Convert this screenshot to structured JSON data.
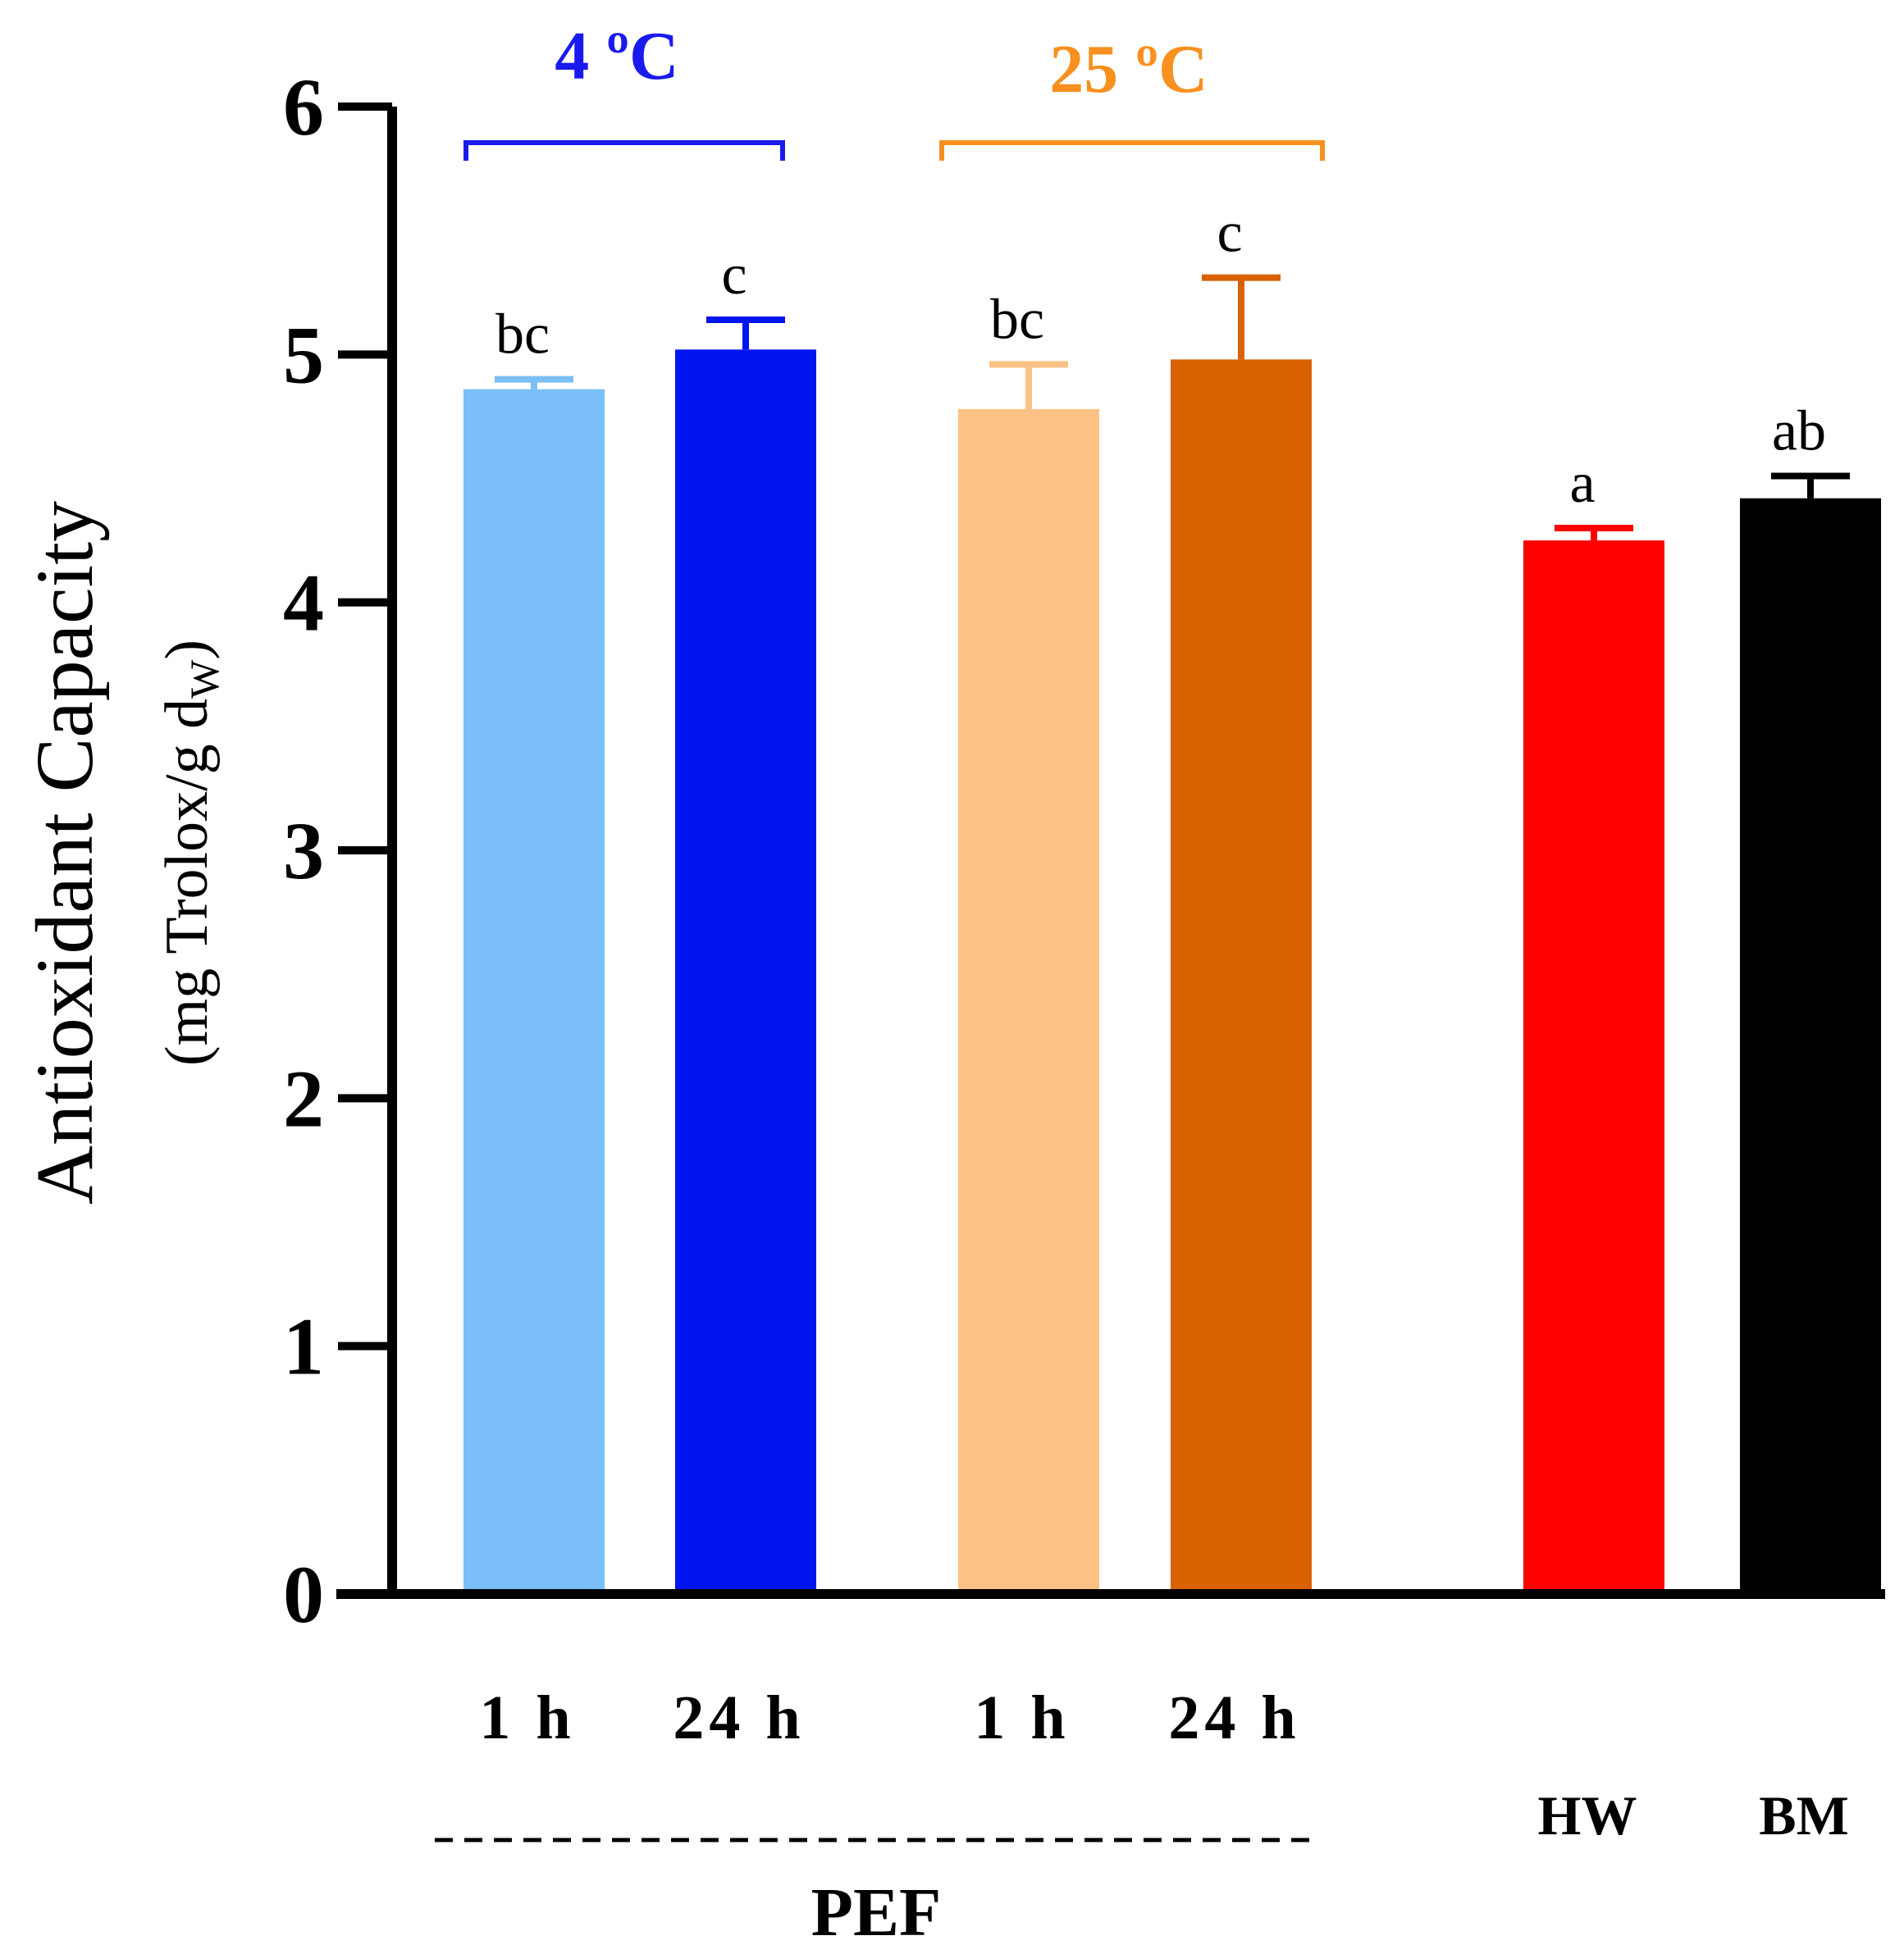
{
  "chart_data": {
    "type": "bar",
    "title": "",
    "xlabel": "",
    "ylabel": "Antioxidant Capacity",
    "ylabel_units": {
      "open": "(mg Trolox/g d",
      "subscript": "W",
      "close": ")"
    },
    "ylim": [
      0,
      6
    ],
    "yticks": [
      "0",
      "1",
      "2",
      "3",
      "4",
      "5",
      "6"
    ],
    "categories": [
      "1 h",
      "24 h",
      "1 h",
      "24 h",
      "HW",
      "BM"
    ],
    "values": [
      4.86,
      5.02,
      4.78,
      4.98,
      4.25,
      4.42
    ],
    "errors": [
      0.04,
      0.12,
      0.18,
      0.33,
      0.05,
      0.09
    ],
    "significance_labels": [
      "bc",
      "c",
      "bc",
      "c",
      "a",
      "ab"
    ],
    "colors": [
      "#7abff8",
      "#0014f0",
      "#fcc184",
      "#d96100",
      "#ff0000",
      "#000000"
    ],
    "groups": [
      {
        "label": "4 ºC",
        "color": "#1a1aee",
        "bars": [
          0,
          1
        ]
      },
      {
        "label": "25 ºC",
        "color": "#f7901e",
        "bars": [
          2,
          3
        ]
      }
    ],
    "treatment_label": "PEF",
    "axis_color": "#000000"
  }
}
